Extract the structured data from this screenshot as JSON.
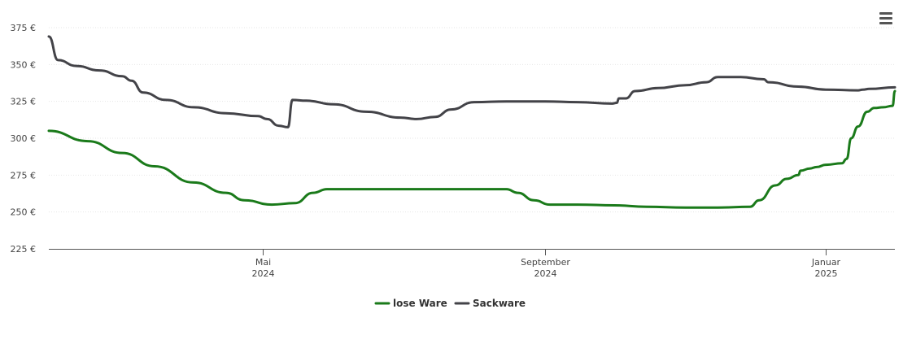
{
  "chart_data": {
    "type": "line",
    "title": "",
    "xlabel": "",
    "ylabel": "",
    "ylim": [
      225,
      375
    ],
    "yticks": [
      "225 €",
      "250 €",
      "275 €",
      "300 €",
      "325 €",
      "350 €",
      "375 €"
    ],
    "xticks": [
      {
        "month": "Mai",
        "year": "2024",
        "date": "2024-05-01"
      },
      {
        "month": "September",
        "year": "2024",
        "date": "2024-09-01"
      },
      {
        "month": "Januar",
        "year": "2025",
        "date": "2025-01-01"
      }
    ],
    "xrange": [
      "2024-01-29",
      "2025-01-31"
    ],
    "grid": true,
    "legend_position": "bottom-center",
    "series": [
      {
        "name": "lose Ware",
        "color": "#1a7a1a",
        "points": [
          [
            "2024-01-29",
            305
          ],
          [
            "2024-02-15",
            298
          ],
          [
            "2024-03-01",
            290
          ],
          [
            "2024-03-15",
            281
          ],
          [
            "2024-04-01",
            270
          ],
          [
            "2024-04-15",
            263
          ],
          [
            "2024-04-23",
            258
          ],
          [
            "2024-05-05",
            255
          ],
          [
            "2024-05-15",
            256
          ],
          [
            "2024-05-23",
            263
          ],
          [
            "2024-05-29",
            265.5
          ],
          [
            "2024-06-15",
            265.5
          ],
          [
            "2024-07-01",
            265.5
          ],
          [
            "2024-07-15",
            265.5
          ],
          [
            "2024-08-01",
            265.5
          ],
          [
            "2024-08-15",
            265.5
          ],
          [
            "2024-08-20",
            263
          ],
          [
            "2024-08-27",
            258
          ],
          [
            "2024-09-03",
            255
          ],
          [
            "2024-09-15",
            255
          ],
          [
            "2024-10-01",
            254.5
          ],
          [
            "2024-10-15",
            253.5
          ],
          [
            "2024-11-01",
            253
          ],
          [
            "2024-11-15",
            253
          ],
          [
            "2024-11-29",
            253.5
          ],
          [
            "2024-12-03",
            258
          ],
          [
            "2024-12-10",
            268
          ],
          [
            "2024-12-15",
            272.5
          ],
          [
            "2024-12-20",
            275
          ],
          [
            "2024-12-21",
            278
          ],
          [
            "2024-12-25",
            279.5
          ],
          [
            "2024-12-28",
            280.5
          ],
          [
            "2025-01-01",
            282
          ],
          [
            "2025-01-08",
            283
          ],
          [
            "2025-01-10",
            286
          ],
          [
            "2025-01-12",
            300
          ],
          [
            "2025-01-15",
            308
          ],
          [
            "2025-01-19",
            318
          ],
          [
            "2025-01-22",
            320.5
          ],
          [
            "2025-01-26",
            321
          ],
          [
            "2025-01-30",
            322
          ],
          [
            "2025-01-31",
            332
          ]
        ]
      },
      {
        "name": "Sackware",
        "color": "#434348",
        "points": [
          [
            "2024-01-29",
            369
          ],
          [
            "2024-02-02",
            353
          ],
          [
            "2024-02-10",
            349
          ],
          [
            "2024-02-20",
            346
          ],
          [
            "2024-03-01",
            342
          ],
          [
            "2024-03-05",
            339
          ],
          [
            "2024-03-10",
            331
          ],
          [
            "2024-03-20",
            326
          ],
          [
            "2024-04-01",
            321
          ],
          [
            "2024-04-15",
            317
          ],
          [
            "2024-04-29",
            315
          ],
          [
            "2024-05-03",
            313
          ],
          [
            "2024-05-08",
            308.5
          ],
          [
            "2024-05-12",
            307.5
          ],
          [
            "2024-05-14",
            326
          ],
          [
            "2024-05-20",
            325.5
          ],
          [
            "2024-06-01",
            323
          ],
          [
            "2024-06-15",
            318
          ],
          [
            "2024-06-30",
            314
          ],
          [
            "2024-07-07",
            313
          ],
          [
            "2024-07-15",
            314.5
          ],
          [
            "2024-07-22",
            319.5
          ],
          [
            "2024-08-01",
            324.5
          ],
          [
            "2024-08-15",
            325
          ],
          [
            "2024-09-01",
            325
          ],
          [
            "2024-09-15",
            324.5
          ],
          [
            "2024-09-30",
            323.5
          ],
          [
            "2024-10-02",
            324
          ],
          [
            "2024-10-03",
            327
          ],
          [
            "2024-10-06",
            327
          ],
          [
            "2024-10-10",
            332
          ],
          [
            "2024-10-20",
            334
          ],
          [
            "2024-11-01",
            336
          ],
          [
            "2024-11-10",
            338
          ],
          [
            "2024-11-15",
            341.5
          ],
          [
            "2024-11-25",
            341.5
          ],
          [
            "2024-12-05",
            340
          ],
          [
            "2024-12-07",
            338
          ],
          [
            "2024-12-20",
            335
          ],
          [
            "2025-01-01",
            333
          ],
          [
            "2025-01-15",
            332.5
          ],
          [
            "2025-01-17",
            333
          ],
          [
            "2025-01-20",
            333.5
          ],
          [
            "2025-01-31",
            334.5
          ]
        ]
      }
    ]
  },
  "toolbar": {
    "menu_icon": "hamburger-menu-icon"
  },
  "colors": {
    "grid": "#e6e6e6",
    "axis": "#555555",
    "background": "#ffffff"
  }
}
